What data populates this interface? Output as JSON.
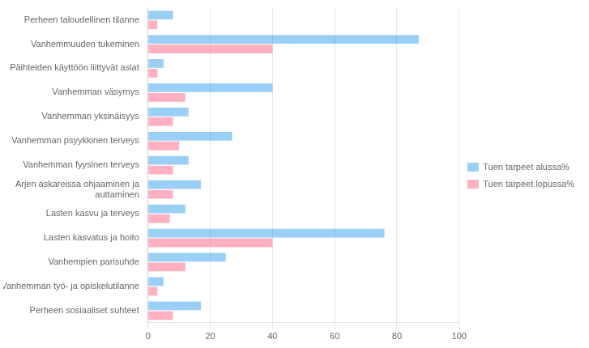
{
  "chart_data": {
    "type": "bar",
    "orientation": "horizontal",
    "categories": [
      "Perheen taloudellinen tilanne",
      "Vanhemmuuden tukeminen",
      "Päihteiden käyttöön liittyvät asiat",
      "Vanhemman väsymys",
      "Vanhemman yksinäisyys",
      "Vanhemman psyykkinen terveys",
      "Vanhemman fyysinen terveys",
      "Arjen askareissa ohjaaminen ja\nauttaminen",
      "Lasten kasvu ja terveys",
      "Lasten kasvatus ja hoito",
      "Vanhempien parisuhde",
      "Vanhemman työ- ja opiskelutilanne",
      "Perheen sosiaaliset suhteet"
    ],
    "series": [
      {
        "name": "Tuen tarpeet alussa%",
        "values": [
          8,
          87,
          5,
          40,
          13,
          27,
          13,
          17,
          12,
          76,
          25,
          5,
          17
        ]
      },
      {
        "name": "Tuen tarpeet lopussa%",
        "values": [
          3,
          40,
          3,
          12,
          8,
          10,
          8,
          8,
          7,
          40,
          12,
          3,
          8
        ]
      }
    ],
    "xlim": [
      0,
      100
    ],
    "xticks": [
      0,
      20,
      40,
      60,
      80,
      100
    ],
    "grid": true,
    "legend": "right"
  }
}
